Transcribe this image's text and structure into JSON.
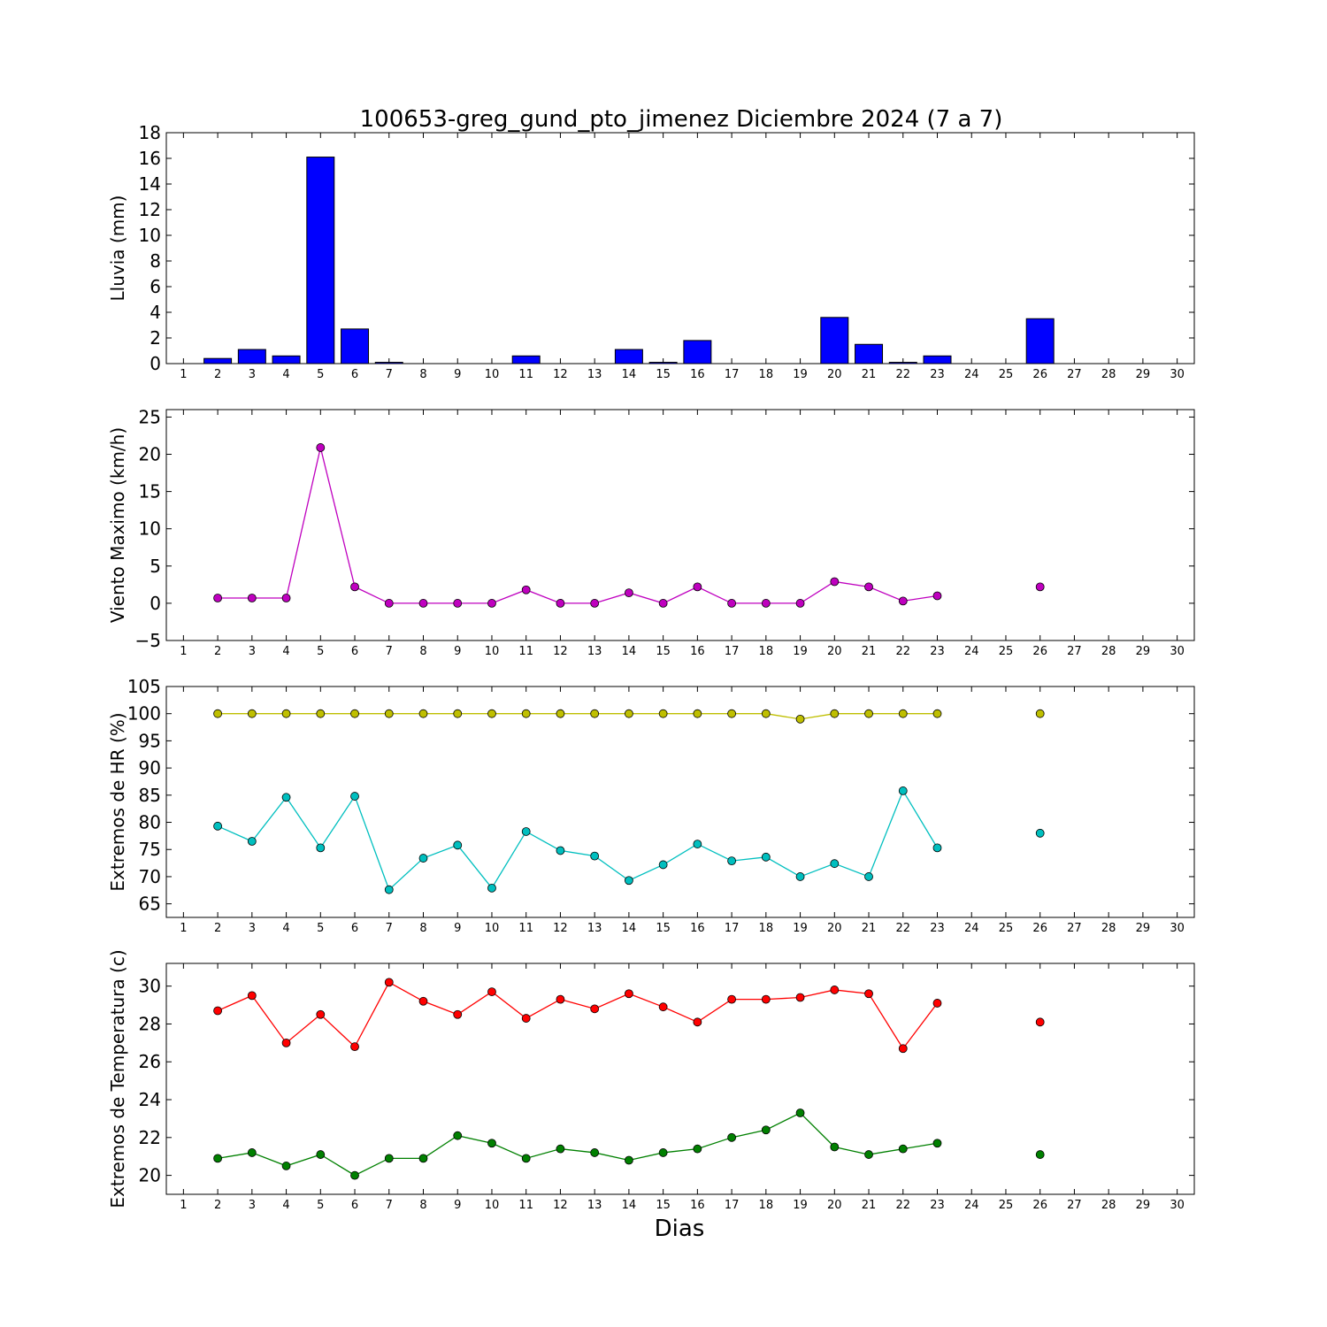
{
  "title": "100653-greg_gund_pto_jimenez Diciembre 2024  (7 a 7)",
  "xlabel": "Dias",
  "x_ticks": [
    1,
    2,
    3,
    4,
    5,
    6,
    7,
    8,
    9,
    10,
    11,
    12,
    13,
    14,
    15,
    16,
    17,
    18,
    19,
    20,
    21,
    22,
    23,
    24,
    25,
    26,
    27,
    28,
    29,
    30
  ],
  "chart_data": [
    {
      "type": "bar",
      "ylabel": "Lluvia (mm)",
      "ylim": [
        0,
        18
      ],
      "yticks": [
        0,
        2,
        4,
        6,
        8,
        10,
        12,
        14,
        16,
        18
      ],
      "xlim": [
        0.5,
        30.5
      ],
      "color": "#0000ff",
      "x": [
        2,
        3,
        4,
        5,
        6,
        7,
        8,
        9,
        10,
        11,
        12,
        13,
        14,
        15,
        16,
        17,
        18,
        19,
        20,
        21,
        22,
        23,
        26
      ],
      "values": [
        0.4,
        1.1,
        0.6,
        16.1,
        2.7,
        0.1,
        0,
        0,
        0,
        0.6,
        0,
        0,
        1.1,
        0.1,
        1.8,
        0,
        0,
        0,
        3.6,
        1.5,
        0.1,
        0.6,
        3.5
      ]
    },
    {
      "type": "line",
      "ylabel": "Viento Maximo (km/h)",
      "ylim": [
        -5,
        26
      ],
      "yticks": [
        -5,
        0,
        5,
        10,
        15,
        20,
        25
      ],
      "xlim": [
        0.5,
        30.5
      ],
      "series": [
        {
          "color": "#bf00bf",
          "segments": [
            {
              "x": [
                2,
                3,
                4,
                5,
                6,
                7,
                8,
                9,
                10,
                11,
                12,
                13,
                14,
                15,
                16,
                17,
                18,
                19,
                20,
                21,
                22,
                23
              ],
              "y": [
                0.7,
                0.7,
                0.7,
                20.9,
                2.2,
                0,
                0,
                0,
                0,
                1.8,
                0,
                0,
                1.4,
                0,
                2.2,
                0,
                0,
                0,
                2.9,
                2.2,
                0.3,
                1.0
              ]
            },
            {
              "x": [
                26
              ],
              "y": [
                2.2
              ]
            }
          ]
        }
      ]
    },
    {
      "type": "line",
      "ylabel": "Extremos de HR (%)",
      "ylim": [
        62.5,
        105
      ],
      "yticks": [
        65,
        70,
        75,
        80,
        85,
        90,
        95,
        100,
        105
      ],
      "xlim": [
        0.5,
        30.5
      ],
      "series": [
        {
          "color": "#bfbf00",
          "segments": [
            {
              "x": [
                2,
                3,
                4,
                5,
                6,
                7,
                8,
                9,
                10,
                11,
                12,
                13,
                14,
                15,
                16,
                17,
                18,
                19,
                20,
                21,
                22,
                23
              ],
              "y": [
                100,
                100,
                100,
                100,
                100,
                100,
                100,
                100,
                100,
                100,
                100,
                100,
                100,
                100,
                100,
                100,
                100,
                99,
                100,
                100,
                100,
                100
              ]
            },
            {
              "x": [
                26
              ],
              "y": [
                100
              ]
            }
          ]
        },
        {
          "color": "#00bfbf",
          "segments": [
            {
              "x": [
                2,
                3,
                4,
                5,
                6,
                7,
                8,
                9,
                10,
                11,
                12,
                13,
                14,
                15,
                16,
                17,
                18,
                19,
                20,
                21,
                22,
                23
              ],
              "y": [
                79.3,
                76.5,
                84.6,
                75.3,
                84.8,
                67.6,
                73.4,
                75.8,
                67.9,
                78.3,
                74.8,
                73.8,
                69.3,
                72.2,
                76.0,
                72.9,
                73.6,
                70.0,
                72.4,
                70.0,
                85.8,
                75.3
              ]
            },
            {
              "x": [
                26
              ],
              "y": [
                78.0
              ]
            }
          ]
        }
      ]
    },
    {
      "type": "line",
      "ylabel": "Extremos de Temperatura (c)",
      "ylim": [
        19,
        31.2
      ],
      "yticks": [
        20,
        22,
        24,
        26,
        28,
        30
      ],
      "xlim": [
        0.5,
        30.5
      ],
      "series": [
        {
          "color": "#ff0000",
          "segments": [
            {
              "x": [
                2,
                3,
                4,
                5,
                6,
                7,
                8,
                9,
                10,
                11,
                12,
                13,
                14,
                15,
                16,
                17,
                18,
                19,
                20,
                21,
                22,
                23
              ],
              "y": [
                28.7,
                29.5,
                27.0,
                28.5,
                26.8,
                30.2,
                29.2,
                28.5,
                29.7,
                28.3,
                29.3,
                28.8,
                29.6,
                28.9,
                28.1,
                29.3,
                29.3,
                29.4,
                29.8,
                29.6,
                26.7,
                29.1
              ]
            },
            {
              "x": [
                26
              ],
              "y": [
                28.1
              ]
            }
          ]
        },
        {
          "color": "#008000",
          "segments": [
            {
              "x": [
                2,
                3,
                4,
                5,
                6,
                7,
                8,
                9,
                10,
                11,
                12,
                13,
                14,
                15,
                16,
                17,
                18,
                19,
                20,
                21,
                22,
                23
              ],
              "y": [
                20.9,
                21.2,
                20.5,
                21.1,
                20.0,
                20.9,
                20.9,
                22.1,
                21.7,
                20.9,
                21.4,
                21.2,
                20.8,
                21.2,
                21.4,
                22.0,
                22.4,
                23.3,
                21.5,
                21.1,
                21.4,
                21.7
              ]
            },
            {
              "x": [
                26
              ],
              "y": [
                21.1
              ]
            }
          ]
        }
      ]
    }
  ]
}
